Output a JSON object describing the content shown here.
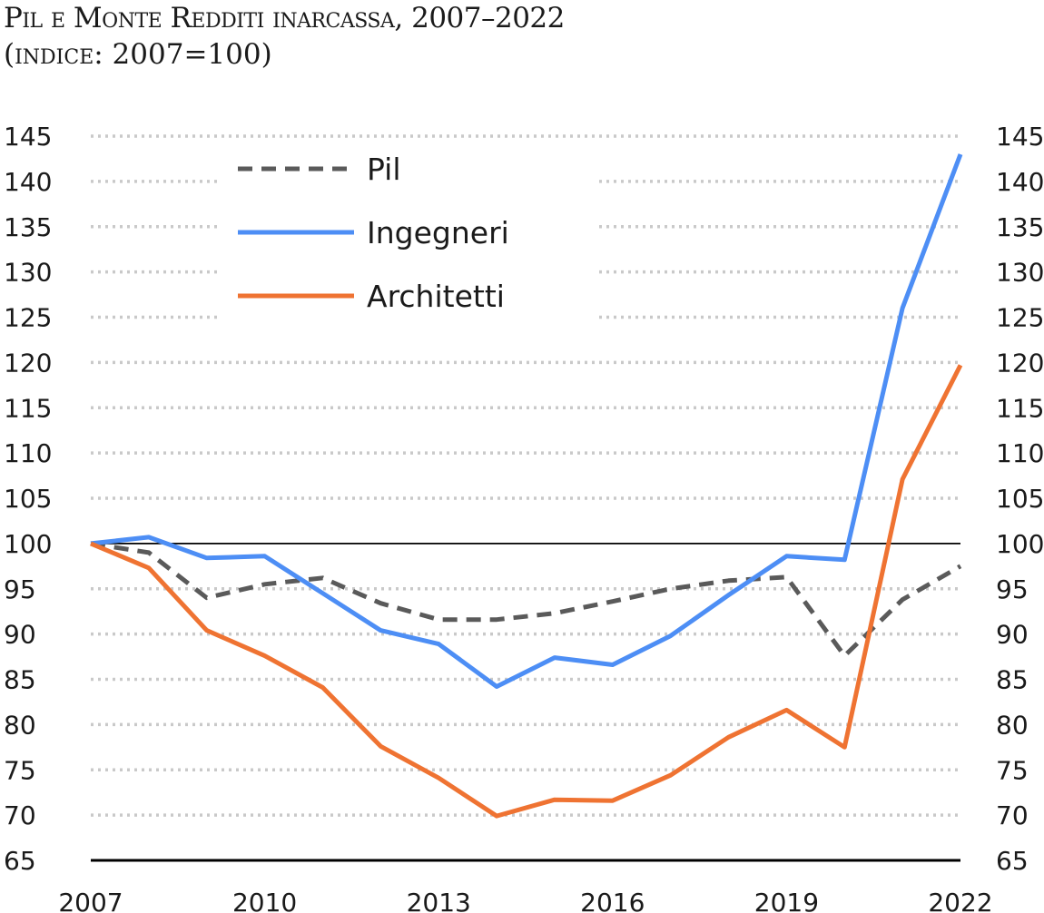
{
  "header": {
    "title": "Pil e Monte Redditi inarcassa, 2007–2022",
    "subtitle": "(indice: 2007=100)"
  },
  "chart_data": {
    "type": "line",
    "x": [
      2007,
      2008,
      2009,
      2010,
      2011,
      2012,
      2013,
      2014,
      2015,
      2016,
      2017,
      2018,
      2019,
      2020,
      2021,
      2022
    ],
    "x_tick_labels": [
      "2007",
      "2010",
      "2013",
      "2016",
      "2019",
      "2022"
    ],
    "y_ticks": [
      65,
      70,
      75,
      80,
      85,
      90,
      95,
      100,
      105,
      110,
      115,
      120,
      125,
      130,
      135,
      140,
      145
    ],
    "ylim": [
      65,
      145
    ],
    "grid": "horizontal dotted",
    "reference_line": 100,
    "secondary_y_axis": "mirrored",
    "legend_position": "top-left",
    "series": [
      {
        "name": "Pil",
        "style": "dashed",
        "color": "#5a5a5a",
        "values": [
          100,
          99,
          94,
          95.5,
          96.2,
          93.4,
          91.6,
          91.6,
          92.3,
          93.6,
          95,
          95.9,
          96.3,
          87.6,
          93.8,
          97.5
        ]
      },
      {
        "name": "Ingegneri",
        "style": "solid",
        "color": "#4d8ef5",
        "values": [
          100,
          100.7,
          98.4,
          98.6,
          94.5,
          90.4,
          88.9,
          84.2,
          87.4,
          86.6,
          89.8,
          94.3,
          98.6,
          98.2,
          126,
          143
        ]
      },
      {
        "name": "Architetti",
        "style": "solid",
        "color": "#ef7332",
        "values": [
          100,
          97.3,
          90.4,
          87.6,
          84.1,
          77.6,
          74.1,
          69.9,
          71.7,
          71.6,
          74.4,
          78.6,
          81.6,
          77.5,
          107.1,
          119.7
        ]
      }
    ]
  }
}
